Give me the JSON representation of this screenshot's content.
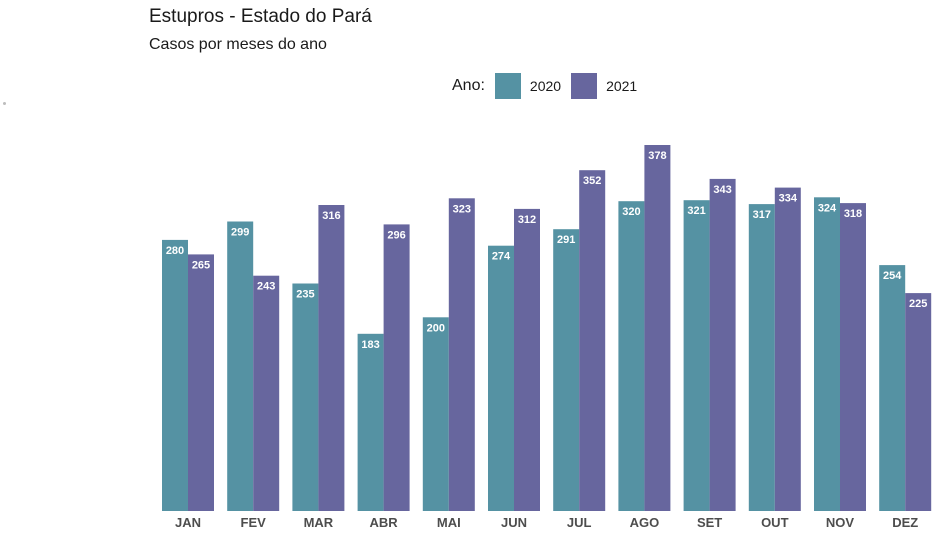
{
  "chart_data": {
    "type": "bar",
    "title": "Estupros - Estado do Pará",
    "subtitle": "Casos por meses do ano",
    "legend_title": "Ano:",
    "legend_position": "top",
    "grid": false,
    "categories": [
      "JAN",
      "FEV",
      "MAR",
      "ABR",
      "MAI",
      "JUN",
      "JUL",
      "AGO",
      "SET",
      "OUT",
      "NOV",
      "DEZ"
    ],
    "series": [
      {
        "name": "2020",
        "color": "#5592a3",
        "values": [
          280,
          299,
          235,
          183,
          200,
          274,
          291,
          320,
          321,
          317,
          324,
          254
        ]
      },
      {
        "name": "2021",
        "color": "#67669e",
        "values": [
          265,
          243,
          316,
          296,
          323,
          312,
          352,
          378,
          343,
          334,
          318,
          225
        ]
      }
    ],
    "ylim": [
      0,
      378
    ]
  }
}
